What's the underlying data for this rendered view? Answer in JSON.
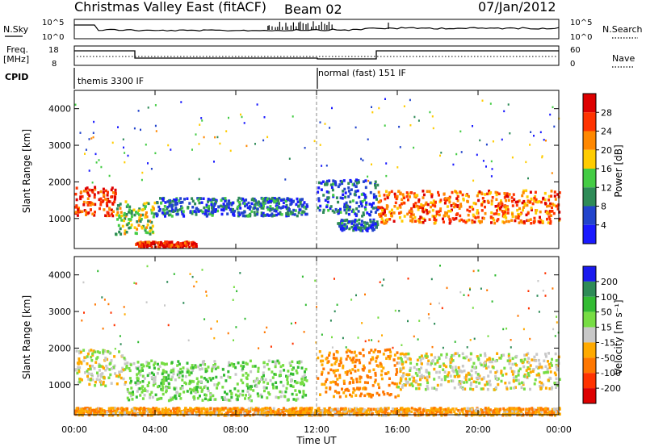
{
  "header": {
    "title": "Christmas Valley East (fitACF)",
    "beam": "Beam 02",
    "date": "07/Jan/2012"
  },
  "strips": {
    "nsky_label": "N.Sky",
    "nsearch_label": "N.Search",
    "nsky_ticks": [
      "10^5",
      "10^0"
    ],
    "nsearch_ticks": [
      "10^5",
      "10^0"
    ],
    "freq_label": "Freq.",
    "freq_unit": "[MHz]",
    "freq_ticks": [
      "18",
      "8"
    ],
    "nave_label": "Nave",
    "nave_ticks": [
      "60",
      "0"
    ],
    "cpid_label": "CPID",
    "cpid_modes": [
      "themis 3300 IF",
      "normal (fast) 151 IF"
    ]
  },
  "axes": {
    "ylabel": "Slant Range [km]",
    "xlabel": "Time UT",
    "yticks": [
      "1000",
      "2000",
      "3000",
      "4000"
    ],
    "xticks": [
      "00:00",
      "04:00",
      "08:00",
      "12:00",
      "16:00",
      "20:00",
      "00:00"
    ]
  },
  "colorbars": {
    "power": {
      "label": "Power [dB]",
      "ticks": [
        "4",
        "8",
        "12",
        "16",
        "20",
        "24",
        "28"
      ],
      "colors": [
        "#1a1aff",
        "#2244cc",
        "#2e8b57",
        "#44cc44",
        "#ffcc00",
        "#ff8800",
        "#ff3300",
        "#dd0000"
      ]
    },
    "velocity": {
      "label": "Velocity [m s⁻¹]",
      "ticks": [
        "200",
        "100",
        "50",
        "15",
        "-15",
        "-50",
        "-100",
        "-200"
      ],
      "colors": [
        "#1a1aee",
        "#2e8b57",
        "#33bb33",
        "#77dd44",
        "#c8c8c8",
        "#ffaa00",
        "#ff7700",
        "#ff3300",
        "#dd0000"
      ]
    }
  },
  "chart_data": [
    {
      "type": "heatmap",
      "name": "Power",
      "x_range_ut_hours": [
        0,
        24
      ],
      "y_range_km": [
        180,
        4500
      ],
      "zlim_dB": [
        0,
        30
      ],
      "features": [
        {
          "x": [
            0.0,
            2.0
          ],
          "y": [
            1100,
            1900
          ],
          "z": 25
        },
        {
          "x": [
            2.0,
            4.0
          ],
          "y": [
            600,
            1500
          ],
          "z": 14
        },
        {
          "x": [
            3.0,
            6.0
          ],
          "y": [
            250,
            400
          ],
          "z": 26
        },
        {
          "x": [
            4.0,
            11.5
          ],
          "y": [
            1100,
            1600
          ],
          "z": 7
        },
        {
          "x": [
            12.0,
            15.0
          ],
          "y": [
            1100,
            2100
          ],
          "z": 6
        },
        {
          "x": [
            13.0,
            15.0
          ],
          "y": [
            700,
            1000
          ],
          "z": 6
        },
        {
          "x": [
            15.0,
            24.0
          ],
          "y": [
            900,
            1800
          ],
          "z": 22
        }
      ]
    },
    {
      "type": "heatmap",
      "name": "Velocity",
      "x_range_ut_hours": [
        0,
        24
      ],
      "y_range_km": [
        180,
        4500
      ],
      "zlim_m_s": [
        -250,
        250
      ],
      "features": [
        {
          "x": [
            0.0,
            2.5
          ],
          "y": [
            1000,
            2000
          ],
          "v": 0
        },
        {
          "x": [
            2.5,
            11.5
          ],
          "y": [
            600,
            1700
          ],
          "v": 35
        },
        {
          "x": [
            12.0,
            16.0
          ],
          "y": [
            700,
            2000
          ],
          "v": -60
        },
        {
          "x": [
            16.0,
            24.0
          ],
          "y": [
            900,
            1900
          ],
          "v": 0
        },
        {
          "x": [
            0.0,
            24.0
          ],
          "y": [
            200,
            400
          ],
          "v": -40
        }
      ]
    }
  ]
}
